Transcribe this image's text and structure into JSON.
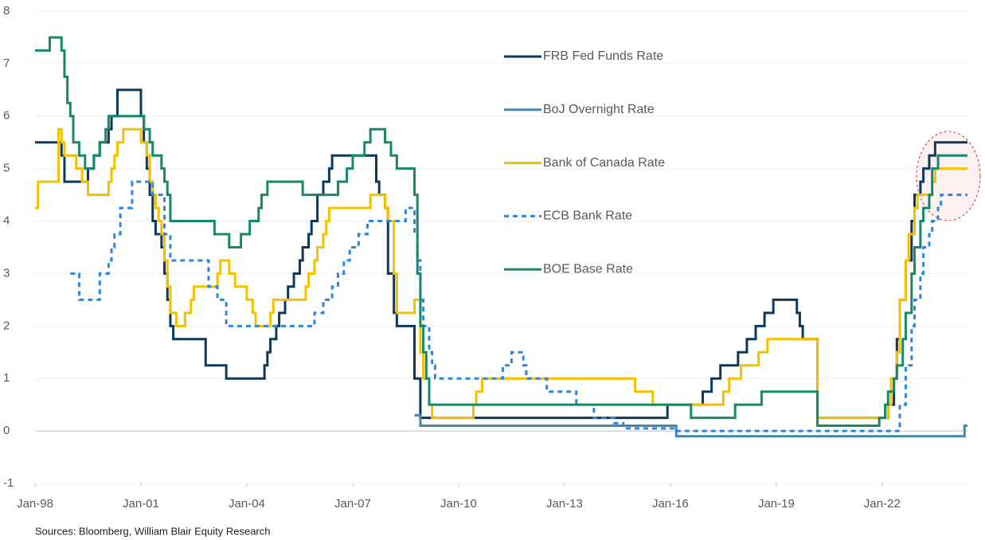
{
  "chart_data": {
    "type": "line",
    "step": true,
    "source": "Sources: Bloomberg, William Blair Equity Research",
    "xlim": [
      "Jan-98",
      "Jun-24"
    ],
    "xticks": [
      "Jan-98",
      "Jan-01",
      "Jan-04",
      "Jan-07",
      "Jan-10",
      "Jan-13",
      "Jan-16",
      "Jan-19",
      "Jan-22"
    ],
    "ylim": [
      -1,
      8
    ],
    "yticks": [
      -1,
      0,
      1,
      2,
      3,
      4,
      5,
      6,
      7,
      8
    ],
    "grid": true,
    "series": [
      {
        "name": "FRB Fed Funds Rate",
        "color": "#0d3a5c",
        "dashed": false,
        "x": [
          "Jan-98",
          "Oct-98",
          "Nov-98",
          "Jul-99",
          "Sep-99",
          "Nov-99",
          "Feb-00",
          "Mar-00",
          "May-00",
          "Jan-01",
          "Feb-01",
          "Mar-01",
          "Apr-01",
          "May-01",
          "Jun-01",
          "Aug-01",
          "Sep-01",
          "Oct-01",
          "Nov-01",
          "Dec-01",
          "Nov-02",
          "Jun-03",
          "Jul-04",
          "Aug-04",
          "Sep-04",
          "Nov-04",
          "Dec-04",
          "Feb-05",
          "Mar-05",
          "May-05",
          "Jul-05",
          "Aug-05",
          "Oct-05",
          "Nov-05",
          "Jan-06",
          "Mar-06",
          "May-06",
          "Jun-06",
          "Sep-07",
          "Oct-07",
          "Dec-07",
          "Jan-08",
          "Mar-08",
          "Apr-08",
          "Oct-08",
          "Dec-08",
          "Dec-15",
          "Dec-16",
          "Mar-17",
          "Jun-17",
          "Dec-17",
          "Mar-18",
          "Jun-18",
          "Sep-18",
          "Dec-18",
          "Aug-19",
          "Sep-19",
          "Oct-19",
          "Mar-20",
          "Mar-22",
          "May-22",
          "Jun-22",
          "Jul-22",
          "Sep-22",
          "Nov-22",
          "Dec-22",
          "Feb-23",
          "Mar-23",
          "May-23",
          "Jul-23",
          "Jun-24"
        ],
        "values": [
          5.5,
          5.25,
          4.75,
          5.0,
          5.25,
          5.5,
          5.75,
          6.0,
          6.5,
          6.0,
          5.5,
          5.0,
          4.5,
          4.0,
          3.75,
          3.5,
          3.0,
          2.5,
          2.0,
          1.75,
          1.25,
          1.0,
          1.25,
          1.5,
          1.75,
          2.0,
          2.25,
          2.5,
          2.75,
          3.0,
          3.25,
          3.5,
          3.75,
          4.0,
          4.5,
          4.75,
          5.0,
          5.25,
          4.75,
          4.5,
          4.25,
          3.0,
          2.25,
          2.0,
          1.0,
          0.25,
          0.5,
          0.75,
          1.0,
          1.25,
          1.5,
          1.75,
          2.0,
          2.25,
          2.5,
          2.25,
          2.0,
          1.75,
          0.25,
          0.5,
          1.0,
          1.75,
          2.5,
          3.25,
          4.0,
          4.5,
          4.75,
          5.0,
          5.25,
          5.5,
          5.5
        ]
      },
      {
        "name": "BoJ Overnight Rate",
        "color": "#4a86a8",
        "dashed": false,
        "x": [
          "Oct-08",
          "Dec-08",
          "Mar-16",
          "May-24",
          "Jun-24"
        ],
        "values": [
          0.3,
          0.1,
          -0.1,
          0.1,
          0.1
        ]
      },
      {
        "name": "Bank of Canada Rate",
        "color": "#f5c000",
        "dashed": false,
        "x": [
          "Jan-98",
          "Feb-98",
          "Sep-98",
          "Oct-98",
          "Nov-98",
          "Mar-99",
          "May-99",
          "Jul-99",
          "Feb-00",
          "Mar-00",
          "Apr-00",
          "May-00",
          "Jul-00",
          "Jan-01",
          "Mar-01",
          "Apr-01",
          "May-01",
          "Jun-01",
          "Jul-01",
          "Aug-01",
          "Sep-01",
          "Oct-01",
          "Nov-01",
          "Jan-02",
          "Apr-02",
          "Jun-02",
          "Jul-02",
          "Mar-03",
          "Apr-03",
          "Jul-03",
          "Sep-03",
          "Jan-04",
          "Mar-04",
          "Apr-04",
          "Sep-04",
          "Oct-04",
          "Sep-05",
          "Oct-05",
          "Dec-05",
          "Jan-06",
          "Mar-06",
          "Apr-06",
          "May-06",
          "Jul-07",
          "Dec-07",
          "Jan-08",
          "Mar-08",
          "Apr-08",
          "Oct-08",
          "Dec-08",
          "Jan-09",
          "Mar-09",
          "Apr-09",
          "Jun-10",
          "Jul-10",
          "Sep-10",
          "Jan-15",
          "Jul-15",
          "Jul-17",
          "Sep-17",
          "Jan-18",
          "Jul-18",
          "Oct-18",
          "Mar-20",
          "Mar-22",
          "Apr-22",
          "Jun-22",
          "Jul-22",
          "Sep-22",
          "Oct-22",
          "Dec-22",
          "Jan-23",
          "Jun-23",
          "Jul-23",
          "Jun-24"
        ],
        "values": [
          4.25,
          4.75,
          5.75,
          5.5,
          5.25,
          5.0,
          4.75,
          4.5,
          4.75,
          5.0,
          5.25,
          5.5,
          5.75,
          5.5,
          5.25,
          4.75,
          4.5,
          4.25,
          4.0,
          3.75,
          3.25,
          2.75,
          2.25,
          2.0,
          2.25,
          2.5,
          2.75,
          3.0,
          3.25,
          3.0,
          2.75,
          2.5,
          2.25,
          2.0,
          2.25,
          2.5,
          2.75,
          3.0,
          3.25,
          3.5,
          3.75,
          4.0,
          4.25,
          4.5,
          4.25,
          4.0,
          3.0,
          2.25,
          2.5,
          1.5,
          1.0,
          0.5,
          0.25,
          0.5,
          0.75,
          1.0,
          0.75,
          0.5,
          0.75,
          1.0,
          1.25,
          1.5,
          1.75,
          0.25,
          0.5,
          1.0,
          1.5,
          2.5,
          3.25,
          3.75,
          4.25,
          4.5,
          4.75,
          5.0,
          5.0
        ]
      },
      {
        "name": "ECB Bank Rate",
        "color": "#2e86de",
        "dashed": true,
        "x": [
          "Jan-99",
          "Apr-99",
          "Nov-99",
          "Feb-00",
          "Mar-00",
          "Apr-00",
          "Jun-00",
          "Oct-00",
          "May-01",
          "Sep-01",
          "Nov-01",
          "Dec-02",
          "Mar-03",
          "Jun-03",
          "Dec-05",
          "Mar-06",
          "Jun-06",
          "Aug-06",
          "Oct-06",
          "Dec-06",
          "Mar-07",
          "Jun-07",
          "Jul-08",
          "Oct-08",
          "Nov-08",
          "Dec-08",
          "Jan-09",
          "Mar-09",
          "Apr-09",
          "May-09",
          "Apr-11",
          "Jul-11",
          "Nov-11",
          "Dec-11",
          "Jul-12",
          "May-13",
          "Nov-13",
          "Jun-14",
          "Sep-14",
          "Mar-16",
          "Jul-22",
          "Sep-22",
          "Nov-22",
          "Dec-22",
          "Feb-23",
          "Mar-23",
          "May-23",
          "Jun-23",
          "Aug-23",
          "Sep-23",
          "Jun-24"
        ],
        "values": [
          3.0,
          2.5,
          3.0,
          3.25,
          3.5,
          3.75,
          4.25,
          4.75,
          4.5,
          3.75,
          3.25,
          2.75,
          2.5,
          2.0,
          2.25,
          2.5,
          2.75,
          3.0,
          3.25,
          3.5,
          3.75,
          4.0,
          4.25,
          3.75,
          3.25,
          2.5,
          2.0,
          1.5,
          1.25,
          1.0,
          1.25,
          1.5,
          1.25,
          1.0,
          0.75,
          0.5,
          0.25,
          0.15,
          0.05,
          0.0,
          0.5,
          1.25,
          2.0,
          2.5,
          3.0,
          3.5,
          3.75,
          4.0,
          4.25,
          4.5,
          4.5
        ]
      },
      {
        "name": "BOE Base Rate",
        "color": "#17896a",
        "dashed": false,
        "x": [
          "Jan-98",
          "Jun-98",
          "Oct-98",
          "Nov-98",
          "Dec-98",
          "Jan-99",
          "Feb-99",
          "Apr-99",
          "Jun-99",
          "Sep-99",
          "Nov-99",
          "Jan-00",
          "Feb-00",
          "Feb-01",
          "Apr-01",
          "May-01",
          "Aug-01",
          "Sep-01",
          "Oct-01",
          "Nov-01",
          "Feb-03",
          "Jul-03",
          "Nov-03",
          "Feb-04",
          "May-04",
          "Jun-04",
          "Aug-04",
          "Aug-05",
          "Aug-06",
          "Nov-06",
          "Jan-07",
          "May-07",
          "Jul-07",
          "Dec-07",
          "Feb-08",
          "Apr-08",
          "Oct-08",
          "Nov-08",
          "Dec-08",
          "Jan-09",
          "Feb-09",
          "Mar-09",
          "Aug-16",
          "Nov-17",
          "Aug-18",
          "Mar-20",
          "Dec-21",
          "Feb-22",
          "Mar-22",
          "May-22",
          "Jun-22",
          "Aug-22",
          "Sep-22",
          "Nov-22",
          "Dec-22",
          "Feb-23",
          "Mar-23",
          "May-23",
          "Jun-23",
          "Aug-23",
          "Jun-24"
        ],
        "values": [
          7.25,
          7.5,
          7.25,
          6.75,
          6.25,
          6.0,
          5.5,
          5.25,
          5.0,
          5.25,
          5.5,
          5.75,
          6.0,
          5.75,
          5.5,
          5.25,
          5.0,
          4.75,
          4.5,
          4.0,
          3.75,
          3.5,
          3.75,
          4.0,
          4.25,
          4.5,
          4.75,
          4.5,
          4.75,
          5.0,
          5.25,
          5.5,
          5.75,
          5.5,
          5.25,
          5.0,
          4.5,
          3.0,
          2.0,
          1.5,
          1.0,
          0.5,
          0.25,
          0.5,
          0.75,
          0.1,
          0.25,
          0.5,
          0.75,
          1.0,
          1.25,
          1.75,
          2.25,
          3.0,
          3.5,
          4.0,
          4.25,
          4.5,
          5.0,
          5.25,
          5.25
        ]
      }
    ]
  }
}
